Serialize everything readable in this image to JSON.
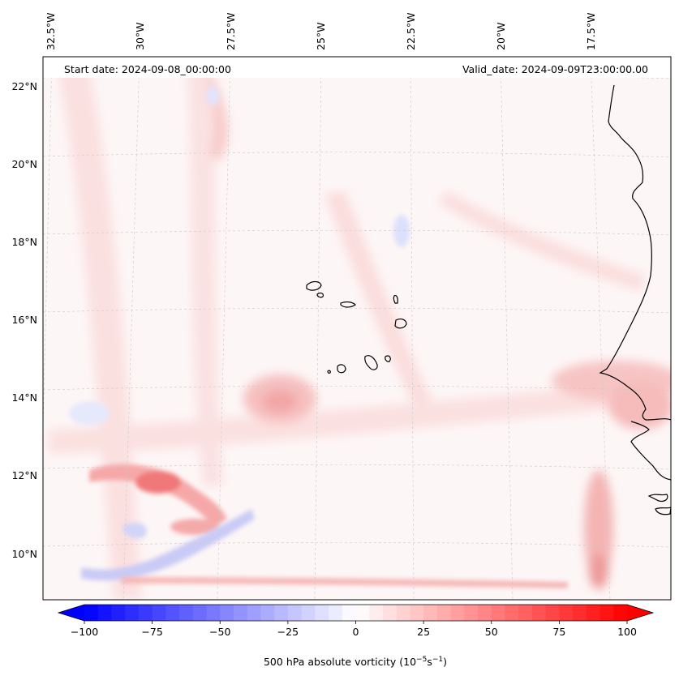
{
  "header": {
    "start_date": "Start date: 2024-09-08_00:00:00",
    "valid_date": "Valid_date: 2024-09-09T23:00:00.00"
  },
  "map": {
    "field": "500 hPa absolute vorticity",
    "colormap": "bwr",
    "background_color": "#fdf6f6",
    "coastline_color": "#000000",
    "lon_labels": [
      "32.5°W",
      "30°W",
      "27.5°W",
      "25°W",
      "22.5°W",
      "20°W",
      "17.5°W"
    ],
    "lat_labels": [
      "22°N",
      "20°N",
      "18°N",
      "16°N",
      "14°N",
      "12°N",
      "10°N"
    ],
    "features": [
      {
        "name": "strong positive vorticity band",
        "sign": "positive"
      },
      {
        "name": "negative vorticity arc",
        "sign": "negative"
      },
      {
        "name": "positive vorticity maximum near 14N 26W",
        "sign": "positive"
      },
      {
        "name": "positive vorticity streak along 9.5N",
        "sign": "positive"
      },
      {
        "name": "coastal positive vorticity near Senegal",
        "sign": "positive"
      }
    ]
  },
  "colorbar": {
    "label_prefix": "500 hPa absolute vorticity (10",
    "exp1": "−5",
    "label_mid": "s",
    "exp2": "−1",
    "label_suffix": ")",
    "range": [
      -100,
      100
    ],
    "tick_values": [
      -100,
      -75,
      -50,
      -25,
      0,
      25,
      50,
      75,
      100
    ],
    "tick_labels": [
      "−100",
      "−75",
      "−50",
      "−25",
      "0",
      "25",
      "50",
      "75",
      "100"
    ],
    "min_color": "#0000ff",
    "mid_color": "#ffffff",
    "max_color": "#ff0000"
  }
}
